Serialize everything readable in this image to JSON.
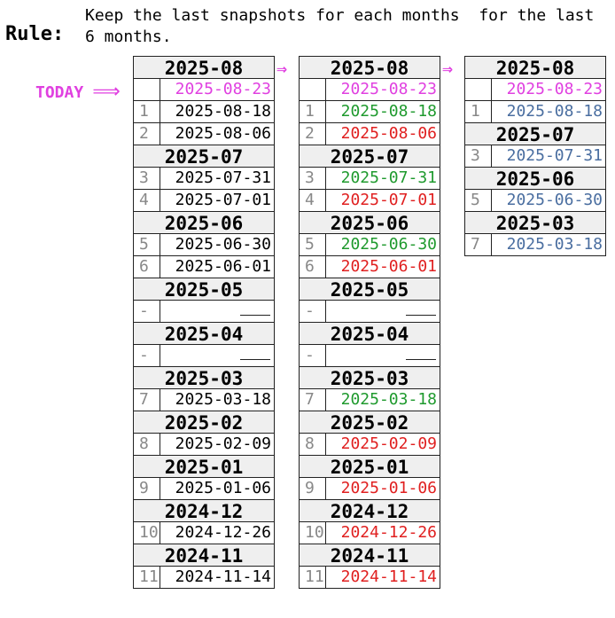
{
  "rule": {
    "label": "Rule:",
    "text": "Keep the last snapshots for each months  for the last 6 months."
  },
  "today": {
    "label": "TODAY",
    "arrow": "⟹"
  },
  "flow_arrow": "⇒",
  "colors": {
    "today": "#e040e0",
    "kept": "#1f9a2e",
    "deleted": "#e02020",
    "result": "#4a6ea0",
    "header_bg": "#efefef"
  },
  "columns": [
    {
      "groups": [
        {
          "month": "2025-08",
          "rows": [
            {
              "index": "",
              "date": "2025-08-23",
              "status": "today"
            },
            {
              "index": "1",
              "date": "2025-08-18",
              "status": "normal"
            },
            {
              "index": "2",
              "date": "2025-08-06",
              "status": "normal"
            }
          ]
        },
        {
          "month": "2025-07",
          "rows": [
            {
              "index": "3",
              "date": "2025-07-31",
              "status": "normal"
            },
            {
              "index": "4",
              "date": "2025-07-01",
              "status": "normal"
            }
          ]
        },
        {
          "month": "2025-06",
          "rows": [
            {
              "index": "5",
              "date": "2025-06-30",
              "status": "normal"
            },
            {
              "index": "6",
              "date": "2025-06-01",
              "status": "normal"
            }
          ]
        },
        {
          "month": "2025-05",
          "rows": [
            {
              "index": "-",
              "date": "",
              "status": "empty"
            }
          ]
        },
        {
          "month": "2025-04",
          "rows": [
            {
              "index": "-",
              "date": "",
              "status": "empty"
            }
          ]
        },
        {
          "month": "2025-03",
          "rows": [
            {
              "index": "7",
              "date": "2025-03-18",
              "status": "normal"
            }
          ]
        },
        {
          "month": "2025-02",
          "rows": [
            {
              "index": "8",
              "date": "2025-02-09",
              "status": "normal"
            }
          ]
        },
        {
          "month": "2025-01",
          "rows": [
            {
              "index": "9",
              "date": "2025-01-06",
              "status": "normal"
            }
          ]
        },
        {
          "month": "2024-12",
          "rows": [
            {
              "index": "10",
              "date": "2024-12-26",
              "status": "normal"
            }
          ]
        },
        {
          "month": "2024-11",
          "rows": [
            {
              "index": "11",
              "date": "2024-11-14",
              "status": "normal"
            }
          ]
        }
      ]
    },
    {
      "groups": [
        {
          "month": "2025-08",
          "rows": [
            {
              "index": "",
              "date": "2025-08-23",
              "status": "today"
            },
            {
              "index": "1",
              "date": "2025-08-18",
              "status": "kept"
            },
            {
              "index": "2",
              "date": "2025-08-06",
              "status": "deleted"
            }
          ]
        },
        {
          "month": "2025-07",
          "rows": [
            {
              "index": "3",
              "date": "2025-07-31",
              "status": "kept"
            },
            {
              "index": "4",
              "date": "2025-07-01",
              "status": "deleted"
            }
          ]
        },
        {
          "month": "2025-06",
          "rows": [
            {
              "index": "5",
              "date": "2025-06-30",
              "status": "kept"
            },
            {
              "index": "6",
              "date": "2025-06-01",
              "status": "deleted"
            }
          ]
        },
        {
          "month": "2025-05",
          "rows": [
            {
              "index": "-",
              "date": "",
              "status": "empty"
            }
          ]
        },
        {
          "month": "2025-04",
          "rows": [
            {
              "index": "-",
              "date": "",
              "status": "empty"
            }
          ]
        },
        {
          "month": "2025-03",
          "rows": [
            {
              "index": "7",
              "date": "2025-03-18",
              "status": "kept"
            }
          ]
        },
        {
          "month": "2025-02",
          "rows": [
            {
              "index": "8",
              "date": "2025-02-09",
              "status": "deleted"
            }
          ]
        },
        {
          "month": "2025-01",
          "rows": [
            {
              "index": "9",
              "date": "2025-01-06",
              "status": "deleted"
            }
          ]
        },
        {
          "month": "2024-12",
          "rows": [
            {
              "index": "10",
              "date": "2024-12-26",
              "status": "deleted"
            }
          ]
        },
        {
          "month": "2024-11",
          "rows": [
            {
              "index": "11",
              "date": "2024-11-14",
              "status": "deleted"
            }
          ]
        }
      ]
    },
    {
      "groups": [
        {
          "month": "2025-08",
          "rows": [
            {
              "index": "",
              "date": "2025-08-23",
              "status": "today"
            },
            {
              "index": "1",
              "date": "2025-08-18",
              "status": "result"
            }
          ]
        },
        {
          "month": "2025-07",
          "rows": [
            {
              "index": "3",
              "date": "2025-07-31",
              "status": "result"
            }
          ]
        },
        {
          "month": "2025-06",
          "rows": [
            {
              "index": "5",
              "date": "2025-06-30",
              "status": "result"
            }
          ]
        },
        {
          "month": "2025-03",
          "rows": [
            {
              "index": "7",
              "date": "2025-03-18",
              "status": "result"
            }
          ]
        }
      ]
    }
  ]
}
